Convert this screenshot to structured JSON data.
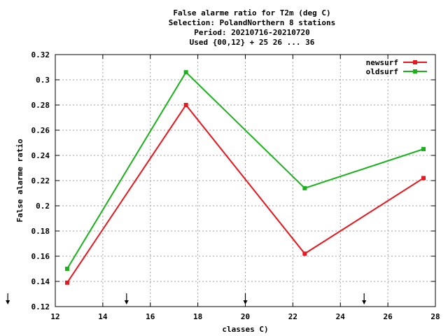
{
  "chart_data": {
    "type": "line",
    "title_lines": [
      "False alarme ratio  for T2m (deg C)",
      "Selection: PolandNorthern      8 stations",
      "Period: 20210716-20210720",
      "Used {00,12} + 25 26 ... 36"
    ],
    "xlabel": "classes C)",
    "ylabel": "False alarme ratio",
    "xlim": [
      12,
      28
    ],
    "ylim": [
      0.12,
      0.32
    ],
    "x_ticks": [
      12,
      14,
      16,
      18,
      20,
      22,
      24,
      26,
      28
    ],
    "y_ticks": [
      0.12,
      0.14,
      0.16,
      0.18,
      0.2,
      0.22,
      0.24,
      0.26,
      0.28,
      0.3,
      0.32
    ],
    "y_tick_labels": [
      "0.12",
      "0.14",
      "0.16",
      "0.18",
      "0.2",
      "0.22",
      "0.24",
      "0.26",
      "0.28",
      "0.3",
      "0.32"
    ],
    "grid": true,
    "legend_position": "top-right",
    "arrow_markers_x": [
      10,
      15,
      20,
      25
    ],
    "series": [
      {
        "name": "newsurf",
        "color": "#e8161d",
        "x": [
          12.5,
          17.5,
          22.5,
          27.5
        ],
        "y": [
          0.139,
          0.28,
          0.162,
          0.222
        ]
      },
      {
        "name": "oldsurf",
        "color": "#1ab21a",
        "x": [
          12.5,
          17.5,
          22.5,
          27.5
        ],
        "y": [
          0.15,
          0.306,
          0.214,
          0.245
        ]
      }
    ]
  }
}
